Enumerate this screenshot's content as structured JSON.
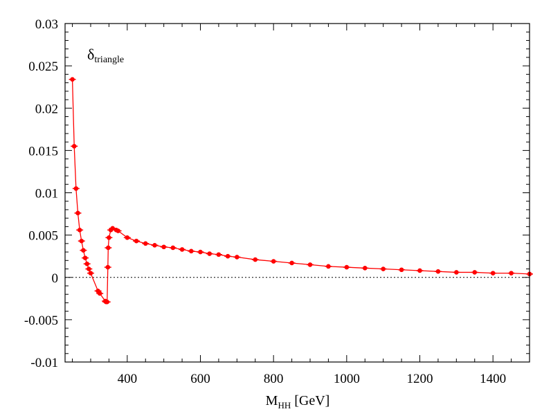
{
  "chart_data": {
    "type": "line",
    "title": "",
    "annotation": {
      "main": "δ",
      "sub": "triangle"
    },
    "xlabel": {
      "main": "M",
      "sub": "HH",
      "rest": " [GeV]"
    },
    "ylabel": "",
    "xlim": [
      230,
      1500
    ],
    "ylim": [
      -0.01,
      0.03
    ],
    "xticks": [
      400,
      600,
      800,
      1000,
      1200,
      1400
    ],
    "xtick_labels": [
      "400",
      "600",
      "800",
      "1000",
      "1200",
      "1400"
    ],
    "yticks": [
      -0.01,
      -0.005,
      0,
      0.005,
      0.01,
      0.015,
      0.02,
      0.025,
      0.03
    ],
    "ytick_labels": [
      "-0.01",
      "-0.005",
      "0",
      "0.005",
      "0.01",
      "0.015",
      "0.02",
      "0.025",
      "0.03"
    ],
    "zero_line": true,
    "grid": false,
    "series": [
      {
        "name": "delta_triangle",
        "color": "#ff0000",
        "x": [
          250,
          255,
          260,
          265,
          270,
          275,
          280,
          285,
          290,
          295,
          300,
          320,
          325,
          340,
          342,
          345,
          347,
          348,
          350,
          355,
          360,
          370,
          375,
          400,
          425,
          450,
          475,
          500,
          525,
          550,
          575,
          600,
          625,
          650,
          675,
          700,
          750,
          800,
          850,
          900,
          950,
          1000,
          1050,
          1100,
          1150,
          1200,
          1250,
          1300,
          1350,
          1400,
          1450,
          1500
        ],
        "y": [
          0.0234,
          0.0155,
          0.0105,
          0.0076,
          0.0056,
          0.0043,
          0.0032,
          0.0023,
          0.0016,
          0.001,
          0.0005,
          -0.0016,
          -0.0019,
          -0.0028,
          -0.0029,
          -0.0029,
          0.0012,
          0.0035,
          0.0047,
          0.0056,
          0.0058,
          0.0056,
          0.0055,
          0.0047,
          0.0043,
          0.004,
          0.0038,
          0.0036,
          0.0035,
          0.0033,
          0.0031,
          0.003,
          0.0028,
          0.0027,
          0.0025,
          0.0024,
          0.0021,
          0.0019,
          0.0017,
          0.0015,
          0.0013,
          0.0012,
          0.0011,
          0.001,
          0.0009,
          0.0008,
          0.0007,
          0.0006,
          0.0006,
          0.0005,
          0.0005,
          0.0004
        ]
      }
    ]
  }
}
